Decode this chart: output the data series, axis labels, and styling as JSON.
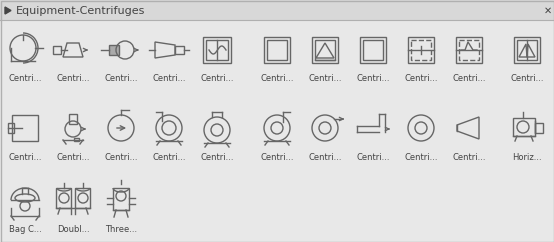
{
  "title": "Equipment-Centrifuges",
  "bg_color": "#e8e8e8",
  "header_bg": "#d8d8d8",
  "border_color": "#b0b0b0",
  "text_color": "#444444",
  "icon_color": "#666666",
  "row1_labels": [
    "Centri...",
    "Centri...",
    "Centri...",
    "Centri...",
    "Centri...",
    "Centri...",
    "Centri...",
    "Centri...",
    "Centri...",
    "Centri...",
    "Centri..."
  ],
  "row2_labels": [
    "Centri...",
    "Centri...",
    "Centri...",
    "Centri...",
    "Centri...",
    "Centri...",
    "Centri...",
    "Centri...",
    "Centri...",
    "Centri...",
    "Horiz..."
  ],
  "row3_labels": [
    "Bag C...",
    "Doubl...",
    "Three..."
  ],
  "figsize": [
    5.54,
    2.42
  ],
  "dpi": 100
}
